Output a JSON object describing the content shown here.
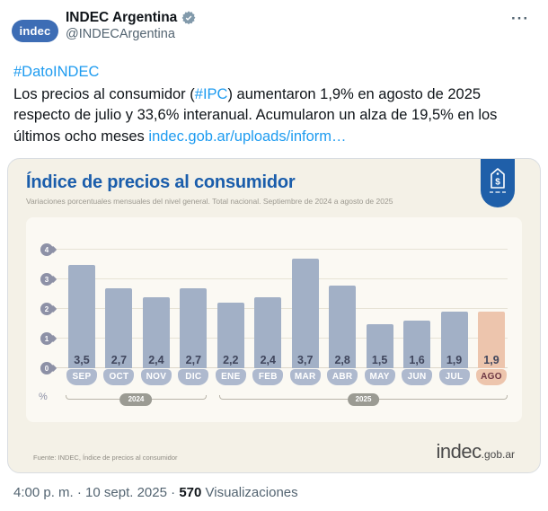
{
  "colors": {
    "accent_blue": "#1a5dab",
    "link_blue": "#1d9bf0",
    "bar": "#a2b0c6",
    "bar_highlight": "#edc5ad",
    "badge": "#aeb9ce",
    "badge_highlight_text": "#6d3744",
    "pin_grey": "#8d91a6"
  },
  "header": {
    "display_name": "INDEC Argentina",
    "handle": "@INDECArgentina",
    "avatar_text": "indec"
  },
  "tweet": {
    "hashtag": "#DatoINDEC",
    "seg1": "Los precios al consumidor (",
    "link1": "#IPC",
    "seg2": ") aumentaron 1,9% en agosto de 2025 respecto de julio y 33,6% interanual. Acumularon un alza de 19,5% en los últimos ocho meses ",
    "link2": "indec.gob.ar/uploads/inform…"
  },
  "chart_data": {
    "type": "bar",
    "title": "Índice de precios al consumidor",
    "subtitle": "Variaciones porcentuales mensuales del nivel general. Total nacional. Septiembre de 2024 a agosto de 2025",
    "categories": [
      "SEP",
      "OCT",
      "NOV",
      "DIC",
      "ENE",
      "FEB",
      "MAR",
      "ABR",
      "MAY",
      "JUN",
      "JUL",
      "AGO"
    ],
    "values": [
      3.5,
      2.7,
      2.4,
      2.7,
      2.2,
      2.4,
      3.7,
      2.8,
      1.5,
      1.6,
      1.9,
      1.9
    ],
    "value_labels": [
      "3,5",
      "2,7",
      "2,4",
      "2,7",
      "2,2",
      "2,4",
      "3,7",
      "2,8",
      "1,5",
      "1,6",
      "1,9",
      "1,9"
    ],
    "highlight_index": 11,
    "y_ticks": [
      0,
      1,
      2,
      3,
      4
    ],
    "ylim": [
      0,
      4.4
    ],
    "ylabel": "%",
    "grid": true,
    "legend": "none",
    "year_groups": [
      {
        "label": "2024",
        "span": 4
      },
      {
        "label": "2025",
        "span": 8
      }
    ],
    "source": "Fuente: INDEC, Índice de precios al consumidor",
    "logo_main": "indec",
    "logo_suffix": ".gob.ar"
  },
  "meta": {
    "time": "4:00 p. m.",
    "date": "10 sept. 2025",
    "separator": "·",
    "views_count": "570",
    "views_label": "Visualizaciones"
  }
}
